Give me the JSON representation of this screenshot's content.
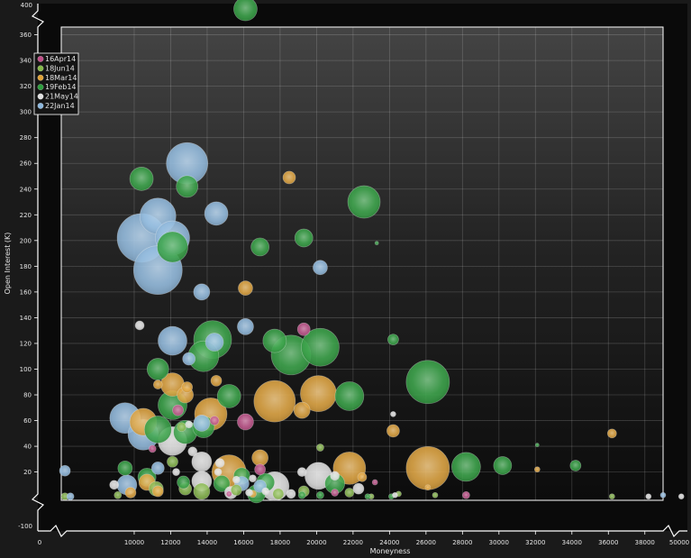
{
  "chart_data": {
    "type": "scatter",
    "subtype": "bubble",
    "xlabel": "Moneyness",
    "ylabel": "Open Interest (K)",
    "xlim": [
      6000,
      39000
    ],
    "ylim": [
      -2,
      366
    ],
    "x_ticks": [
      10000,
      12000,
      14000,
      16000,
      18000,
      20000,
      22000,
      24000,
      26000,
      28000,
      30000,
      32000,
      34000,
      36000,
      38000
    ],
    "y_ticks": [
      20,
      40,
      60,
      80,
      100,
      120,
      140,
      160,
      180,
      200,
      220,
      240,
      260,
      280,
      300,
      320,
      340,
      360
    ],
    "outer_labels": {
      "y_top": "400",
      "y_bottom": "-100",
      "x_left": "0",
      "x_right": "50000"
    },
    "grid": true,
    "legend_position": "top-left",
    "series": [
      {
        "name": "16Apr14",
        "color": "#c2508a",
        "points": [
          [
            16100,
            59,
            9
          ],
          [
            19300,
            131,
            7
          ],
          [
            16900,
            22,
            6
          ],
          [
            14400,
            60,
            5
          ],
          [
            12400,
            68,
            6
          ],
          [
            21000,
            4,
            4
          ],
          [
            28200,
            2,
            4
          ],
          [
            23200,
            12,
            3
          ],
          [
            11000,
            38,
            4
          ],
          [
            15200,
            3,
            3
          ]
        ]
      },
      {
        "name": "18Jun14",
        "color": "#86b84a",
        "points": [
          [
            12100,
            28,
            6
          ],
          [
            11200,
            7,
            8
          ],
          [
            13700,
            5,
            9
          ],
          [
            12800,
            7,
            7
          ],
          [
            15600,
            6,
            6
          ],
          [
            17900,
            3,
            6
          ],
          [
            19300,
            5,
            6
          ],
          [
            20200,
            39,
            4
          ],
          [
            21800,
            4,
            5
          ],
          [
            23000,
            1,
            3
          ],
          [
            36200,
            1,
            3
          ],
          [
            9100,
            2,
            4
          ],
          [
            6200,
            1,
            4
          ],
          [
            24500,
            3,
            3
          ],
          [
            26500,
            2,
            3
          ],
          [
            12600,
            55,
            5
          ]
        ]
      },
      {
        "name": "18Mar14",
        "color": "#e0a238",
        "points": [
          [
            17700,
            75,
            23
          ],
          [
            20100,
            81,
            20
          ],
          [
            15200,
            20,
            19
          ],
          [
            26100,
            23,
            24
          ],
          [
            21800,
            23,
            18
          ],
          [
            12100,
            88,
            13
          ],
          [
            14200,
            65,
            18
          ],
          [
            10500,
            59,
            15
          ],
          [
            19200,
            68,
            9
          ],
          [
            18500,
            249,
            7
          ],
          [
            16100,
            163,
            8
          ],
          [
            24200,
            52,
            7
          ],
          [
            36200,
            50,
            5
          ],
          [
            16900,
            31,
            9
          ],
          [
            10700,
            12,
            9
          ],
          [
            14500,
            91,
            6
          ],
          [
            12800,
            80,
            9
          ],
          [
            12900,
            86,
            6
          ],
          [
            11300,
            5,
            6
          ],
          [
            9800,
            4,
            6
          ],
          [
            22500,
            16,
            5
          ],
          [
            11300,
            88,
            5
          ],
          [
            32100,
            22,
            3
          ],
          [
            16500,
            3,
            4
          ],
          [
            26100,
            8,
            3
          ]
        ]
      },
      {
        "name": "19Feb14",
        "color": "#2e9e3e",
        "points": [
          [
            16100,
            380,
            13
          ],
          [
            10400,
            248,
            13
          ],
          [
            12900,
            242,
            12
          ],
          [
            22600,
            230,
            18
          ],
          [
            19300,
            202,
            10
          ],
          [
            16900,
            195,
            10
          ],
          [
            12100,
            195,
            17
          ],
          [
            14300,
            123,
            21
          ],
          [
            11300,
            100,
            12
          ],
          [
            13800,
            110,
            17
          ],
          [
            17700,
            122,
            13
          ],
          [
            18600,
            111,
            22
          ],
          [
            20200,
            117,
            21
          ],
          [
            21800,
            79,
            16
          ],
          [
            26100,
            90,
            24
          ],
          [
            24200,
            123,
            6
          ],
          [
            28200,
            24,
            16
          ],
          [
            30200,
            25,
            10
          ],
          [
            34200,
            25,
            6
          ],
          [
            15200,
            79,
            13
          ],
          [
            12100,
            72,
            16
          ],
          [
            11300,
            53,
            15
          ],
          [
            12800,
            51,
            13
          ],
          [
            13800,
            55,
            12
          ],
          [
            10700,
            16,
            10
          ],
          [
            9500,
            23,
            8
          ],
          [
            15900,
            17,
            9
          ],
          [
            17200,
            12,
            10
          ],
          [
            21000,
            11,
            11
          ],
          [
            19200,
            2,
            4
          ],
          [
            22800,
            1,
            3
          ],
          [
            24100,
            1,
            3
          ],
          [
            20200,
            2,
            4
          ],
          [
            16700,
            3,
            10
          ],
          [
            14800,
            11,
            9
          ],
          [
            12700,
            12,
            7
          ],
          [
            23300,
            198,
            2
          ],
          [
            32100,
            41,
            2
          ]
        ]
      },
      {
        "name": "21May14",
        "color": "#e2e2e2",
        "points": [
          [
            12100,
            44,
            16
          ],
          [
            17700,
            9,
            16
          ],
          [
            20100,
            17,
            15
          ],
          [
            13700,
            13,
            11
          ],
          [
            13700,
            28,
            11
          ],
          [
            15300,
            4,
            7
          ],
          [
            18600,
            3,
            5
          ],
          [
            19200,
            20,
            5
          ],
          [
            22300,
            7,
            6
          ],
          [
            21000,
            17,
            5
          ],
          [
            14700,
            27,
            5
          ],
          [
            8900,
            10,
            5
          ],
          [
            10300,
            134,
            5
          ],
          [
            13000,
            57,
            4
          ],
          [
            12300,
            20,
            4
          ],
          [
            14600,
            20,
            4
          ],
          [
            13200,
            36,
            5
          ],
          [
            24200,
            65,
            3
          ],
          [
            24300,
            2,
            3
          ],
          [
            17200,
            5,
            4
          ],
          [
            15600,
            14,
            4
          ],
          [
            16300,
            4,
            4
          ],
          [
            16500,
            15,
            4
          ],
          [
            38200,
            1,
            3
          ],
          [
            40000,
            1,
            3
          ]
        ]
      },
      {
        "name": "22Jan14",
        "color": "#8db8de",
        "points": [
          [
            10400,
            202,
            27
          ],
          [
            11300,
            177,
            27
          ],
          [
            11300,
            219,
            20
          ],
          [
            12900,
            260,
            23
          ],
          [
            12100,
            202,
            19
          ],
          [
            14500,
            221,
            13
          ],
          [
            13700,
            160,
            9
          ],
          [
            20200,
            179,
            8
          ],
          [
            12100,
            122,
            16
          ],
          [
            14400,
            121,
            10
          ],
          [
            16100,
            133,
            9
          ],
          [
            13000,
            108,
            7
          ],
          [
            9500,
            62,
            17
          ],
          [
            10500,
            49,
            17
          ],
          [
            13700,
            58,
            9
          ],
          [
            9600,
            10,
            11
          ],
          [
            15900,
            11,
            8
          ],
          [
            16900,
            9,
            7
          ],
          [
            6200,
            21,
            6
          ],
          [
            11300,
            23,
            7
          ],
          [
            6500,
            1,
            4
          ],
          [
            39000,
            2,
            3
          ]
        ]
      }
    ]
  }
}
